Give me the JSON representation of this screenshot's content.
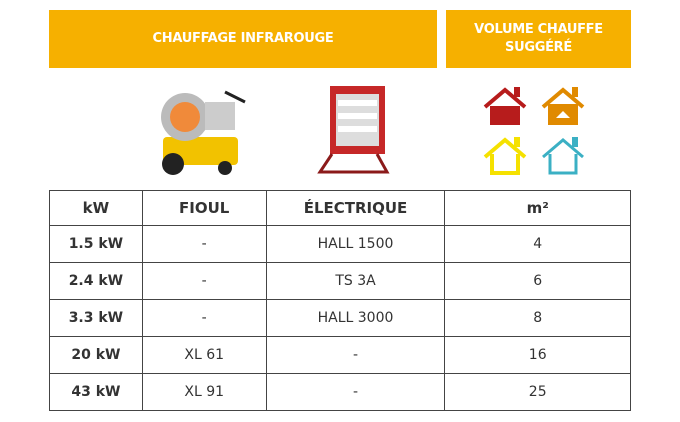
{
  "header": {
    "infrared_title": "CHAUFFAGE INFRAROUGE",
    "volume_title_line1": "VOLUME CHAUFFE",
    "volume_title_line2": "SUGGÉRÉ"
  },
  "colors": {
    "header_bg": "#F6B000",
    "house_colors": [
      "#B71C1C",
      "#E08A00",
      "#F5E100",
      "#3BB0C4"
    ]
  },
  "table": {
    "headers": [
      "kW",
      "FIOUL",
      "ÉLECTRIQUE",
      "m²"
    ],
    "rows": [
      [
        "1.5 kW",
        "-",
        "HALL 1500",
        "4"
      ],
      [
        "2.4 kW",
        "-",
        "TS 3A",
        "6"
      ],
      [
        "3.3 kW",
        "-",
        "HALL 3000",
        "8"
      ],
      [
        "20 kW",
        "XL 61",
        "-",
        "16"
      ],
      [
        "43 kW",
        "XL 91",
        "-",
        "25"
      ]
    ]
  }
}
